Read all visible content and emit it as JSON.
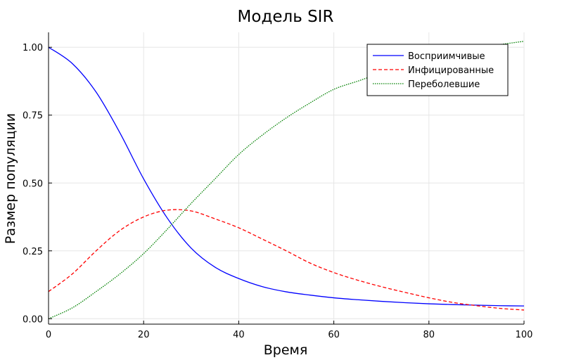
{
  "chart_data": {
    "type": "line",
    "title": "Модель SIR",
    "xlabel": "Время",
    "ylabel": "Размер популяции",
    "xlim": [
      0,
      100
    ],
    "ylim": [
      -0.02,
      1.055
    ],
    "xticks": [
      0,
      20,
      40,
      60,
      80,
      100
    ],
    "xtick_labels": [
      "0",
      "20",
      "40",
      "60",
      "80",
      "100"
    ],
    "yticks": [
      0,
      0.25,
      0.5,
      0.75,
      1.0
    ],
    "ytick_labels": [
      "0.00",
      "0.25",
      "0.50",
      "0.75",
      "1.00"
    ],
    "grid": true,
    "legend_position": "top-right",
    "x": [
      0,
      5,
      10,
      15,
      20,
      25,
      30,
      35,
      40,
      45,
      50,
      55,
      60,
      65,
      70,
      75,
      80,
      85,
      90,
      95,
      100
    ],
    "series": [
      {
        "name": "Восприимчивые",
        "color": "#0000ff",
        "style": "solid",
        "values": [
          1.0,
          0.94,
          0.835,
          0.685,
          0.515,
          0.37,
          0.26,
          0.19,
          0.148,
          0.118,
          0.099,
          0.087,
          0.077,
          0.07,
          0.064,
          0.059,
          0.055,
          0.052,
          0.05,
          0.048,
          0.047
        ]
      },
      {
        "name": "Инфицированные",
        "color": "#ff0000",
        "style": "dashed",
        "values": [
          0.1,
          0.165,
          0.25,
          0.325,
          0.375,
          0.4,
          0.397,
          0.368,
          0.335,
          0.293,
          0.25,
          0.205,
          0.17,
          0.142,
          0.118,
          0.097,
          0.077,
          0.06,
          0.048,
          0.038,
          0.032
        ]
      },
      {
        "name": "Переболевшие",
        "color": "#008000",
        "style": "dotted",
        "values": [
          0.0,
          0.04,
          0.1,
          0.165,
          0.24,
          0.33,
          0.425,
          0.515,
          0.605,
          0.677,
          0.74,
          0.795,
          0.845,
          0.875,
          0.905,
          0.93,
          0.955,
          0.975,
          0.995,
          1.01,
          1.022
        ]
      }
    ]
  }
}
